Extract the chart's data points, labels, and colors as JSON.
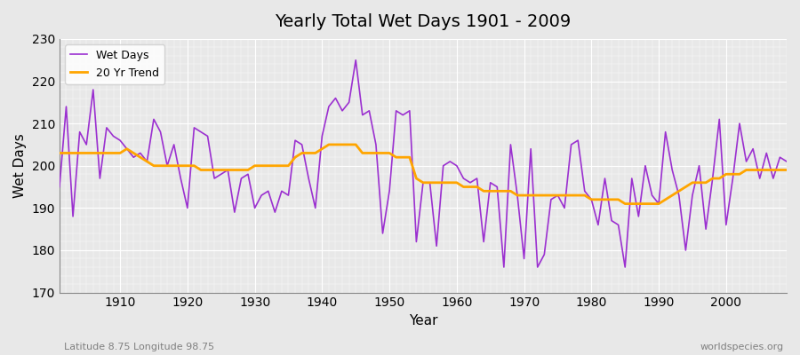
{
  "title": "Yearly Total Wet Days 1901 - 2009",
  "xlabel": "Year",
  "ylabel": "Wet Days",
  "footnote_left": "Latitude 8.75 Longitude 98.75",
  "footnote_right": "worldspecies.org",
  "legend_wet_days": "Wet Days",
  "legend_trend": "20 Yr Trend",
  "wet_days_color": "#9B30D0",
  "trend_color": "#FFA500",
  "background_color": "#E8E8E8",
  "ylim": [
    170,
    230
  ],
  "xlim": [
    1901,
    2009
  ],
  "years": [
    1901,
    1902,
    1903,
    1904,
    1905,
    1906,
    1907,
    1908,
    1909,
    1910,
    1911,
    1912,
    1913,
    1914,
    1915,
    1916,
    1917,
    1918,
    1919,
    1920,
    1921,
    1922,
    1923,
    1924,
    1925,
    1926,
    1927,
    1928,
    1929,
    1930,
    1931,
    1932,
    1933,
    1934,
    1935,
    1936,
    1937,
    1938,
    1939,
    1940,
    1941,
    1942,
    1943,
    1944,
    1945,
    1946,
    1947,
    1948,
    1949,
    1950,
    1951,
    1952,
    1953,
    1954,
    1955,
    1956,
    1957,
    1958,
    1959,
    1960,
    1961,
    1962,
    1963,
    1964,
    1965,
    1966,
    1967,
    1968,
    1969,
    1970,
    1971,
    1972,
    1973,
    1974,
    1975,
    1976,
    1977,
    1978,
    1979,
    1980,
    1981,
    1982,
    1983,
    1984,
    1985,
    1986,
    1987,
    1988,
    1989,
    1990,
    1991,
    1992,
    1993,
    1994,
    1995,
    1996,
    1997,
    1998,
    1999,
    2000,
    2001,
    2002,
    2003,
    2004,
    2005,
    2006,
    2007,
    2008,
    2009
  ],
  "wet_days": [
    195,
    214,
    188,
    208,
    205,
    218,
    197,
    209,
    207,
    206,
    204,
    202,
    203,
    201,
    211,
    208,
    200,
    205,
    197,
    190,
    209,
    208,
    207,
    197,
    198,
    199,
    189,
    197,
    198,
    190,
    193,
    194,
    189,
    194,
    193,
    206,
    205,
    197,
    190,
    207,
    214,
    216,
    213,
    215,
    225,
    212,
    213,
    205,
    184,
    194,
    213,
    212,
    213,
    182,
    196,
    196,
    181,
    200,
    201,
    200,
    197,
    196,
    197,
    182,
    196,
    195,
    176,
    205,
    193,
    178,
    204,
    176,
    179,
    192,
    193,
    190,
    205,
    206,
    194,
    192,
    186,
    197,
    187,
    186,
    176,
    197,
    188,
    200,
    193,
    191,
    208,
    199,
    193,
    180,
    193,
    200,
    185,
    197,
    211,
    186,
    197,
    210,
    201,
    204,
    197,
    203,
    197,
    202,
    201
  ],
  "trend": [
    203,
    203,
    203,
    203,
    203,
    203,
    203,
    203,
    203,
    203,
    204,
    203,
    202,
    201,
    200,
    200,
    200,
    200,
    200,
    200,
    200,
    199,
    199,
    199,
    199,
    199,
    199,
    199,
    199,
    200,
    200,
    200,
    200,
    200,
    200,
    202,
    203,
    203,
    203,
    204,
    205,
    205,
    205,
    205,
    205,
    203,
    203,
    203,
    203,
    203,
    202,
    202,
    202,
    197,
    196,
    196,
    196,
    196,
    196,
    196,
    195,
    195,
    195,
    194,
    194,
    194,
    194,
    194,
    193,
    193,
    193,
    193,
    193,
    193,
    193,
    193,
    193,
    193,
    193,
    192,
    192,
    192,
    192,
    192,
    191,
    191,
    191,
    191,
    191,
    191,
    192,
    193,
    194,
    195,
    196,
    196,
    196,
    197,
    197,
    198,
    198,
    198,
    199,
    199,
    199,
    199,
    199,
    199,
    199
  ]
}
